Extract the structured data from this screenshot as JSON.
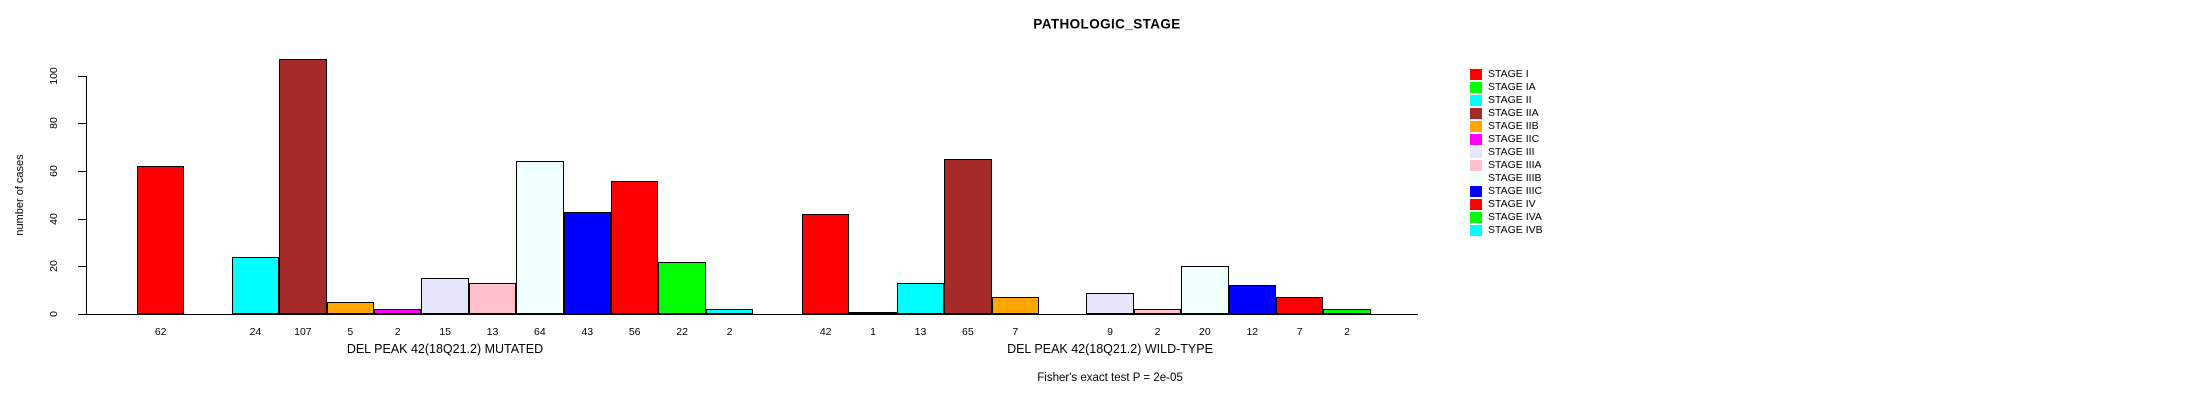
{
  "chart_data": {
    "type": "bar",
    "title": "PATHOLOGIC_STAGE",
    "ylabel": "number of cases",
    "yticks": [
      0,
      20,
      40,
      60,
      80,
      100
    ],
    "ylim": [
      0,
      110
    ],
    "grid": false,
    "legend_position": "right",
    "bar_outline_color": "#000000",
    "annotation": "Fisher's exact test P = 2e-05",
    "stages": [
      {
        "name": "STAGE I",
        "color": "#FF0000"
      },
      {
        "name": "STAGE IA",
        "color": "#00FF00"
      },
      {
        "name": "STAGE II",
        "color": "#00FFFF"
      },
      {
        "name": "STAGE IIA",
        "color": "#A52A2A"
      },
      {
        "name": "STAGE IIB",
        "color": "#FFA500"
      },
      {
        "name": "STAGE IIC",
        "color": "#FF00FF"
      },
      {
        "name": "STAGE III",
        "color": "#E6E6FA"
      },
      {
        "name": "STAGE IIIA",
        "color": "#FFC0CB"
      },
      {
        "name": "STAGE IIIB",
        "color": "#F0FFFF"
      },
      {
        "name": "STAGE IIIC",
        "color": "#0000FF"
      },
      {
        "name": "STAGE IV",
        "color": "#FF0000"
      },
      {
        "name": "STAGE IVA",
        "color": "#00FF00"
      },
      {
        "name": "STAGE IVB",
        "color": "#00FFFF"
      }
    ],
    "groups": [
      {
        "label": "DEL PEAK 42(18Q21.2) MUTATED",
        "values": [
          62,
          0,
          24,
          107,
          5,
          2,
          15,
          13,
          64,
          43,
          56,
          22,
          2
        ]
      },
      {
        "label": "DEL PEAK 42(18Q21.2) WILD-TYPE",
        "values": [
          42,
          1,
          13,
          65,
          7,
          0,
          9,
          2,
          20,
          12,
          7,
          2,
          0
        ]
      }
    ],
    "zero_bars_unlabeled": true
  }
}
